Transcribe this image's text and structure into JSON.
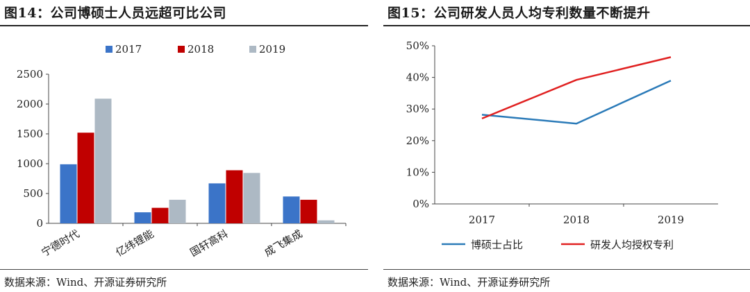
{
  "left_panel": {
    "title": "图14：公司博硕士人员远超可比公司",
    "source": "数据来源：Wind、开源证券研究所"
  },
  "right_panel": {
    "title": "图15：公司研发人员人均专利数量不断提升",
    "source": "数据来源：Wind、开源证券研究所"
  },
  "chart_data": [
    {
      "type": "bar",
      "title": "公司博硕士人员远超可比公司",
      "categories": [
        "宁德时代",
        "亿纬锂能",
        "国轩高科",
        "成飞集成"
      ],
      "series": [
        {
          "name": "2017",
          "color": "#3b74c8",
          "values": [
            990,
            185,
            670,
            450
          ]
        },
        {
          "name": "2018",
          "color": "#c00000",
          "values": [
            1520,
            260,
            890,
            395
          ]
        },
        {
          "name": "2019",
          "color": "#adb9c4",
          "values": [
            2090,
            395,
            845,
            50
          ]
        }
      ],
      "ylim": [
        0,
        2500
      ],
      "yticks": [
        0,
        500,
        1000,
        1500,
        2000,
        2500
      ],
      "legend_position": "top-center"
    },
    {
      "type": "line",
      "title": "公司研发人员人均专利数量不断提升",
      "x": [
        "2017",
        "2018",
        "2019"
      ],
      "series": [
        {
          "name": "博硕士占比",
          "color": "#2a7ab8",
          "values": [
            28.2,
            25.4,
            39.0
          ]
        },
        {
          "name": "研发人均授权专利",
          "color": "#e02020",
          "values": [
            27.0,
            39.2,
            46.4
          ]
        }
      ],
      "ylim": [
        0,
        50
      ],
      "yticks": [
        "0%",
        "10%",
        "20%",
        "30%",
        "40%",
        "50%"
      ],
      "legend_position": "bottom"
    }
  ]
}
